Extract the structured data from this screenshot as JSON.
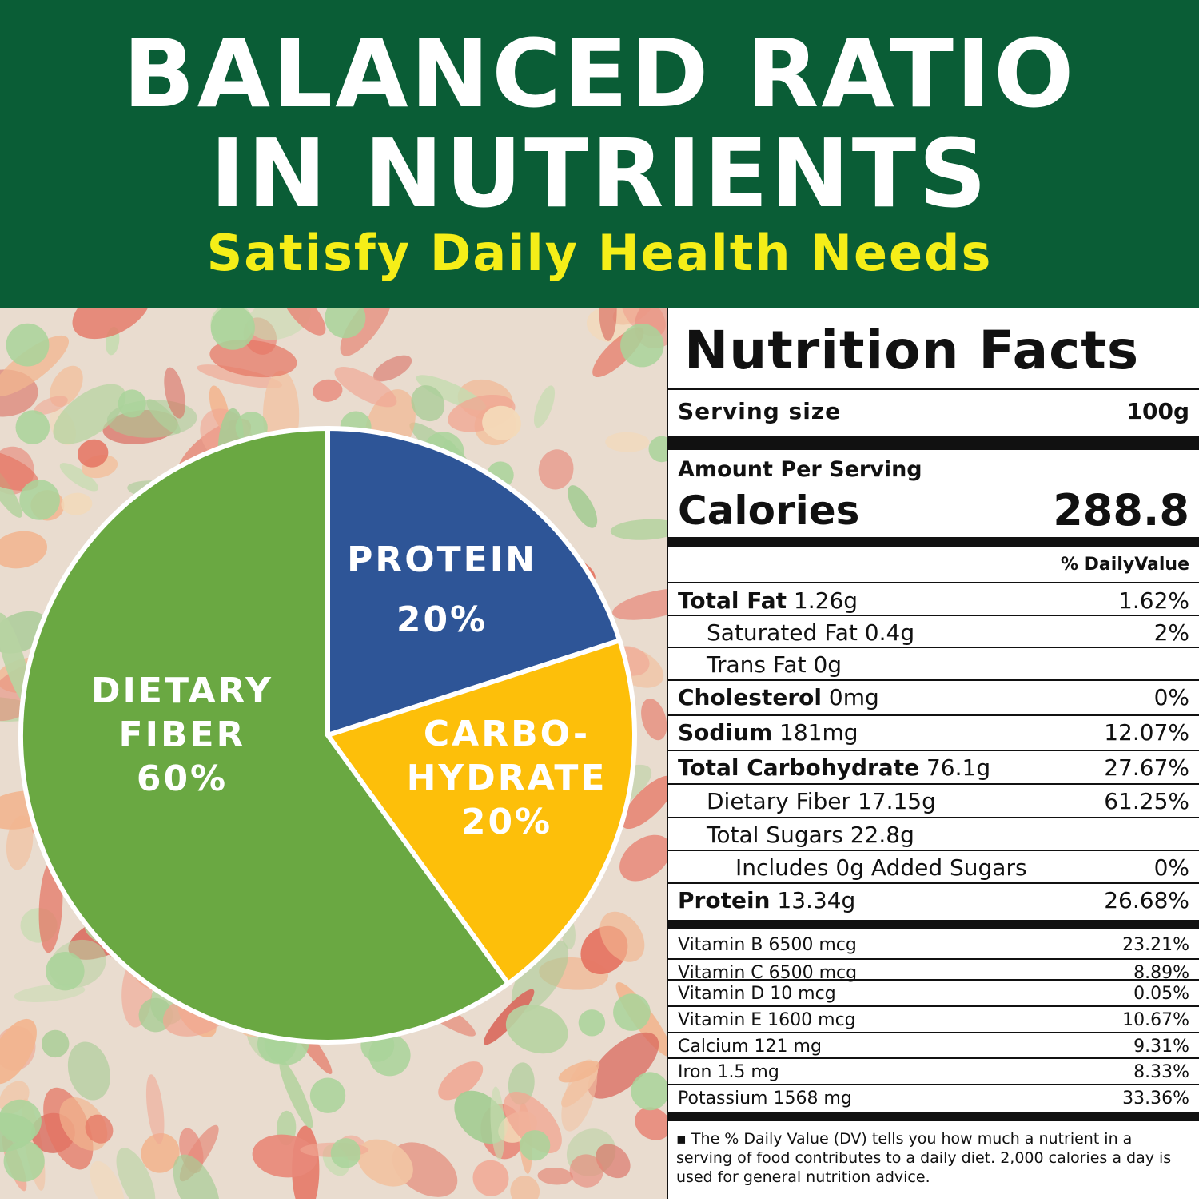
{
  "header": {
    "title_line1": "BALANCED RATIO",
    "title_line2": "IN NUTRIENTS",
    "subtitle": "Satisfy Daily Health Needs"
  },
  "colors": {
    "header_bg": "#0a5d36",
    "subtitle": "#f5ee18",
    "fiber": "#6aa842",
    "protein": "#2e5597",
    "carbohydrate": "#fdbf0a"
  },
  "chart_data": {
    "type": "pie",
    "slices": [
      {
        "label_lines": [
          "PROTEIN",
          "20%"
        ],
        "value": 20
      },
      {
        "label_lines": [
          "CARBO-",
          "HYDRATE",
          "20%"
        ],
        "value": 20
      },
      {
        "label_lines": [
          "DIETARY",
          "FIBER",
          "60%"
        ],
        "value": 60
      }
    ]
  },
  "nutrition": {
    "title": "Nutrition Facts",
    "serving_label": "Serving size",
    "serving_value": "100g",
    "amount_per_serving": "Amount Per Serving",
    "calories_label": "Calories",
    "calories_value": "288.8",
    "dv_header": "% DailyValue",
    "rows": [
      {
        "name": "Total Fat",
        "amount": "1.26g",
        "dv": "1.62%"
      },
      {
        "name": "Saturated Fat",
        "amount": "0.4g",
        "dv": "2%"
      },
      {
        "name": "Trans Fat",
        "amount": "0g",
        "dv": ""
      },
      {
        "name": "Cholesterol",
        "amount": "0mg",
        "dv": "0%"
      },
      {
        "name": "Sodium",
        "amount": "181mg",
        "dv": "12.07%"
      },
      {
        "name": "Total Carbohydrate",
        "amount": "76.1g",
        "dv": "27.67%"
      },
      {
        "name": "Dietary Fiber",
        "amount": "17.15g",
        "dv": "61.25%"
      },
      {
        "name": "Total Sugars",
        "amount": "22.8g",
        "dv": ""
      },
      {
        "name": "Includes 0g Added Sugars",
        "amount": "",
        "dv": "0%"
      },
      {
        "name": "Protein",
        "amount": "13.34g",
        "dv": "26.68%"
      }
    ],
    "vitamins": [
      {
        "text": "Vitamin  B  6500 mcg",
        "dv": "23.21%"
      },
      {
        "text": "Vitamin  C   6500 mcg",
        "dv": "8.89%"
      },
      {
        "text": "Vitamin  D  10 mcg",
        "dv": "0.05%"
      },
      {
        "text": "Vitamin  E  1600 mcg",
        "dv": "10.67%"
      },
      {
        "text": "Calcium  121 mg",
        "dv": "9.31%"
      },
      {
        "text": "Iron  1.5 mg",
        "dv": "8.33%"
      },
      {
        "text": "Potassium  1568 mg",
        "dv": "33.36%"
      }
    ],
    "footnote": "▪ The % Daily Value (DV) tells you how much a nutrient in a serving of food contributes to a daily diet. 2,000 calories a day is used for general nutrition advice."
  }
}
